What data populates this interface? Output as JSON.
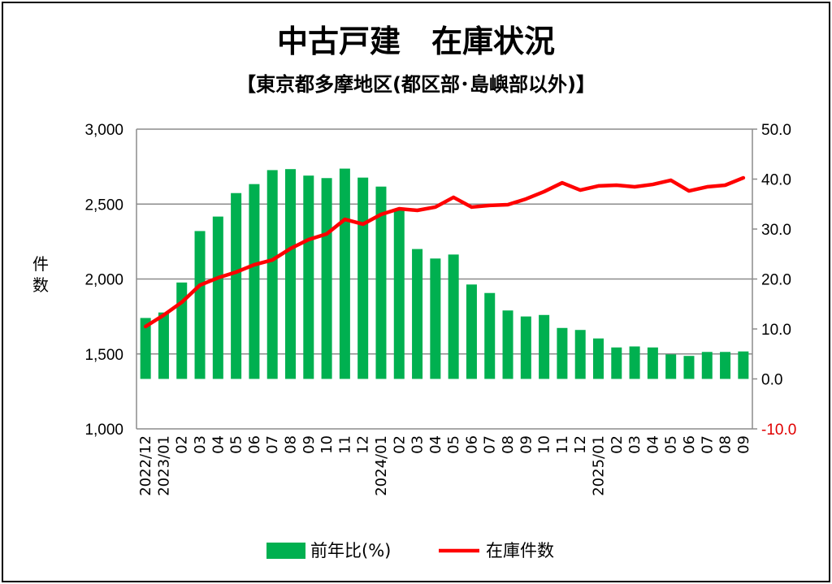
{
  "chart_data": {
    "type": "bar+line",
    "title": "中古戸建　在庫状況",
    "subtitle": "【東京都多摩地区(都区部･島嶼部以外)】",
    "ylabel_left": "件数",
    "left_axis": {
      "range": [
        1000,
        3000
      ],
      "ticks": [
        "1,000",
        "1,500",
        "2,000",
        "2,500",
        "3,000"
      ],
      "tick_values": [
        1000,
        1500,
        2000,
        2500,
        3000
      ]
    },
    "right_axis": {
      "range": [
        -10,
        50
      ],
      "ticks": [
        "-10.0",
        "0.0",
        "10.0",
        "20.0",
        "30.0",
        "40.0",
        "50.0"
      ],
      "tick_values": [
        -10,
        0,
        10,
        20,
        30,
        40,
        50
      ]
    },
    "grid": true,
    "categories": [
      "2022/12",
      "2023/01",
      "02",
      "03",
      "04",
      "05",
      "06",
      "07",
      "08",
      "09",
      "10",
      "11",
      "12",
      "2024/01",
      "02",
      "03",
      "04",
      "05",
      "06",
      "07",
      "08",
      "09",
      "10",
      "11",
      "12",
      "2025/01",
      "02",
      "03",
      "04",
      "05",
      "06",
      "07",
      "08",
      "09"
    ],
    "series": [
      {
        "name": "前年比(%)",
        "type": "bar",
        "axis": "right",
        "color": "#00b050",
        "values": [
          12.2,
          13.3,
          19.3,
          29.6,
          32.5,
          37.2,
          39.0,
          41.8,
          42.0,
          40.7,
          40.2,
          42.1,
          40.3,
          38.5,
          34.0,
          26.0,
          24.1,
          24.9,
          18.9,
          17.2,
          13.7,
          12.5,
          12.8,
          10.2,
          9.8,
          8.1,
          6.3,
          6.5,
          6.3,
          4.9,
          4.6,
          5.4,
          5.4,
          5.5
        ]
      },
      {
        "name": "在庫件数",
        "type": "line",
        "axis": "left",
        "color": "#ff0000",
        "values": [
          1683,
          1759,
          1845,
          1959,
          2008,
          2046,
          2095,
          2127,
          2203,
          2263,
          2301,
          2398,
          2366,
          2431,
          2469,
          2458,
          2480,
          2545,
          2480,
          2491,
          2496,
          2534,
          2583,
          2642,
          2593,
          2621,
          2626,
          2615,
          2631,
          2659,
          2588,
          2615,
          2626,
          2675
        ]
      }
    ],
    "legend": {
      "placement": "bottom",
      "entries": [
        "前年比(%)",
        "在庫件数"
      ]
    }
  }
}
